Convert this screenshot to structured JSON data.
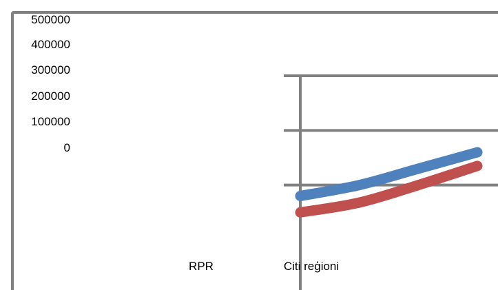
{
  "chart_data": {
    "type": "line",
    "title": "",
    "xlabel": "",
    "ylabel": "",
    "y_ticks": [
      "500000",
      "400000",
      "300000",
      "200000",
      "100000",
      "0"
    ],
    "categories": [
      "RPR",
      "Citi reģioni"
    ],
    "series": [
      {
        "color": "#4f81bd",
        "x": [
          0,
          1,
          2,
          3
        ],
        "y": [
          80,
          100,
          130,
          160
        ]
      },
      {
        "color": "#c0504d",
        "x": [
          0,
          1,
          2,
          3
        ],
        "y": [
          50,
          68,
          100,
          135
        ]
      }
    ],
    "inner_plot": {
      "xlim": [
        0,
        3.35
      ],
      "ylim": [
        0,
        300
      ],
      "grid_values": [
        100,
        200,
        300
      ]
    },
    "grid": true,
    "legend": "none"
  }
}
